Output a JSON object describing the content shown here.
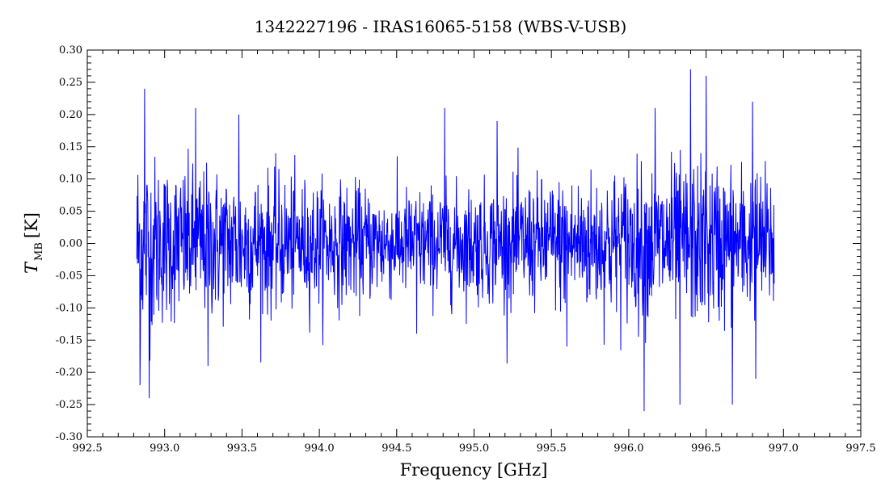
{
  "chart_data": {
    "type": "line",
    "title": "1342227196 - IRAS16065-5158 (WBS-V-USB)",
    "xlabel": "Frequency [GHz]",
    "ylabel_main": "T",
    "ylabel_sub": "MB",
    "ylabel_unit": "[K]",
    "xlim": [
      992.5,
      997.5
    ],
    "ylim": [
      -0.3,
      0.3
    ],
    "xticks": [
      "992.5",
      "993.0",
      "993.5",
      "994.0",
      "994.5",
      "995.0",
      "995.5",
      "996.0",
      "996.5",
      "997.0",
      "997.5"
    ],
    "yticks": [
      "0.30",
      "0.25",
      "0.20",
      "0.15",
      "0.10",
      "0.05",
      "0.00",
      "-0.05",
      "-0.10",
      "-0.15",
      "-0.20",
      "-0.25",
      "-0.30"
    ],
    "x_minor_step": 0.1,
    "y_minor_step": 0.01,
    "grid": false,
    "series": [
      {
        "color": "#0000ff",
        "x_start": 992.82,
        "x_end": 996.94,
        "n_points": 1800,
        "noise_envelope": [
          [
            992.82,
            0.14
          ],
          [
            993.0,
            0.11
          ],
          [
            993.5,
            0.1
          ],
          [
            994.0,
            0.085
          ],
          [
            994.5,
            0.075
          ],
          [
            995.0,
            0.08
          ],
          [
            995.5,
            0.09
          ],
          [
            996.0,
            0.105
          ],
          [
            996.5,
            0.115
          ],
          [
            996.94,
            0.1
          ]
        ],
        "peaks": [
          [
            992.87,
            0.24
          ],
          [
            993.2,
            0.21
          ],
          [
            993.48,
            0.2
          ],
          [
            994.81,
            0.21
          ],
          [
            995.15,
            0.19
          ],
          [
            996.17,
            0.21
          ],
          [
            996.4,
            0.27
          ],
          [
            996.5,
            0.26
          ],
          [
            996.8,
            0.22
          ],
          [
            992.9,
            -0.24
          ],
          [
            993.28,
            -0.19
          ],
          [
            994.63,
            -0.14
          ],
          [
            995.6,
            -0.16
          ],
          [
            996.1,
            -0.26
          ],
          [
            996.33,
            -0.25
          ],
          [
            996.67,
            -0.25
          ],
          [
            992.84,
            -0.22
          ],
          [
            996.82,
            -0.21
          ]
        ]
      }
    ]
  }
}
